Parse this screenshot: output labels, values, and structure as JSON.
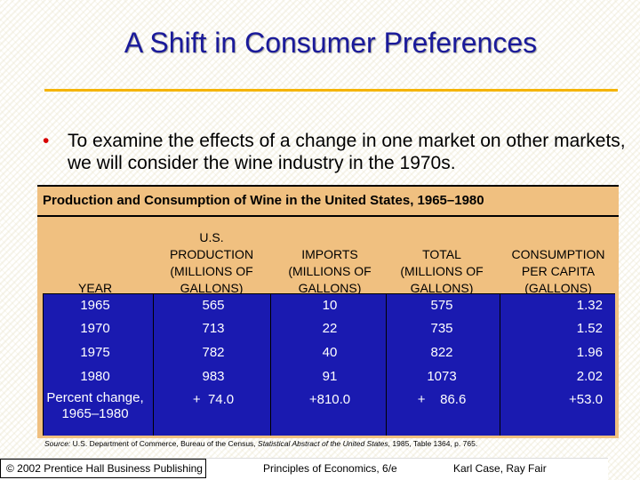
{
  "slide": {
    "title": "A Shift in Consumer Preferences",
    "bullet": "To examine the effects of a change in one market on other markets, we will consider the wine industry in the 1970s.",
    "bullet_marker": "•"
  },
  "table": {
    "caption": "Production and Consumption of Wine in the United States, 1965–1980",
    "headers": {
      "year": "YEAR",
      "production": "U.S.\nPRODUCTION\n(MILLIONS OF\nGALLONS)",
      "imports": "IMPORTS\n(MILLIONS OF\nGALLONS)",
      "total": "TOTAL\n(MILLIONS OF\nGALLONS)",
      "consumption": "CONSUMPTION\nPER CAPITA\n(GALLONS)"
    },
    "rows": [
      {
        "year": "1965",
        "production": "565",
        "imports": "10",
        "total": "575",
        "consumption": "1.32"
      },
      {
        "year": "1970",
        "production": "713",
        "imports": "22",
        "total": "735",
        "consumption": "1.52"
      },
      {
        "year": "1975",
        "production": "782",
        "imports": "40",
        "total": "822",
        "consumption": "1.96"
      },
      {
        "year": "1980",
        "production": "983",
        "imports": "91",
        "total": "1073",
        "consumption": "2.02"
      }
    ],
    "percent_row": {
      "label": "Percent change,\n1965–1980",
      "production": "+  74.0",
      "imports": "+810.0",
      "total": "+    86.6",
      "consumption": "+53.0"
    },
    "source_label": "Source:",
    "source_text": "U.S. Department of Commerce, Bureau of the Census,",
    "source_title": "Statistical Abstract of the United States,",
    "source_tail": "1985, Table 1364, p. 765."
  },
  "footer": {
    "copyright": "© 2002 Prentice Hall Business Publishing",
    "book": "Principles of Economics, 6/e",
    "authors": "Karl Case, Ray Fair"
  },
  "colors": {
    "title": "#1a1a9a",
    "rule": "#f5b400",
    "bullet_marker": "#d80000",
    "table_header": "#f0c080",
    "table_body": "#1a1ab0"
  }
}
